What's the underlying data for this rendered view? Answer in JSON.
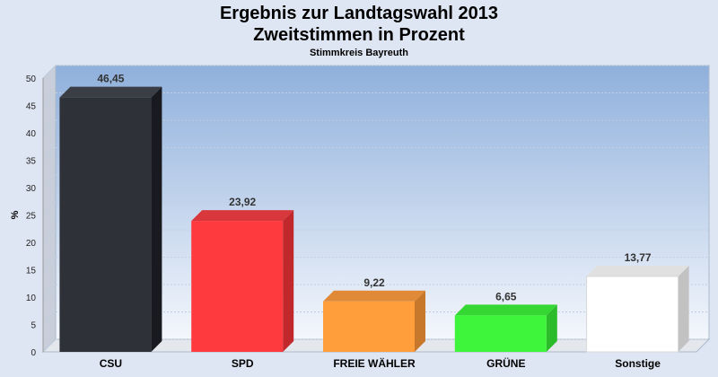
{
  "chart": {
    "title_line1": "Ergebnis zur Landtagswahl 2013",
    "title_line2": "Zweitstimmen in Prozent",
    "subtitle": "Stimmkreis Bayreuth"
  },
  "chart_data": {
    "type": "bar",
    "title": "Ergebnis zur Landtagswahl 2013 Zweitstimmen in Prozent",
    "subtitle": "Stimmkreis Bayreuth",
    "categories": [
      "CSU",
      "SPD",
      "FREIE WÄHLER",
      "GRÜNE",
      "Sonstige"
    ],
    "values": [
      46.45,
      23.92,
      9.22,
      6.65,
      13.77
    ],
    "value_labels": [
      "46,45",
      "23,92",
      "9,22",
      "6,65",
      "13,77"
    ],
    "ylabel": "%",
    "xlabel": "",
    "ylim": [
      0,
      50
    ],
    "yticks": [
      0,
      5,
      10,
      15,
      20,
      25,
      30,
      35,
      40,
      45,
      50
    ],
    "grid": true,
    "colors": [
      "#2e3138",
      "#ff3a3e",
      "#ff9e3a",
      "#3ef53b",
      "#ffffff"
    ],
    "side_colors": [
      "#181a1f",
      "#c0282c",
      "#c8782a",
      "#2cbb2a",
      "#c2c2c2"
    ],
    "top_colors": [
      "#3a3d44",
      "#d8383c",
      "#e08a38",
      "#35d833",
      "#e0e0e0"
    ]
  }
}
